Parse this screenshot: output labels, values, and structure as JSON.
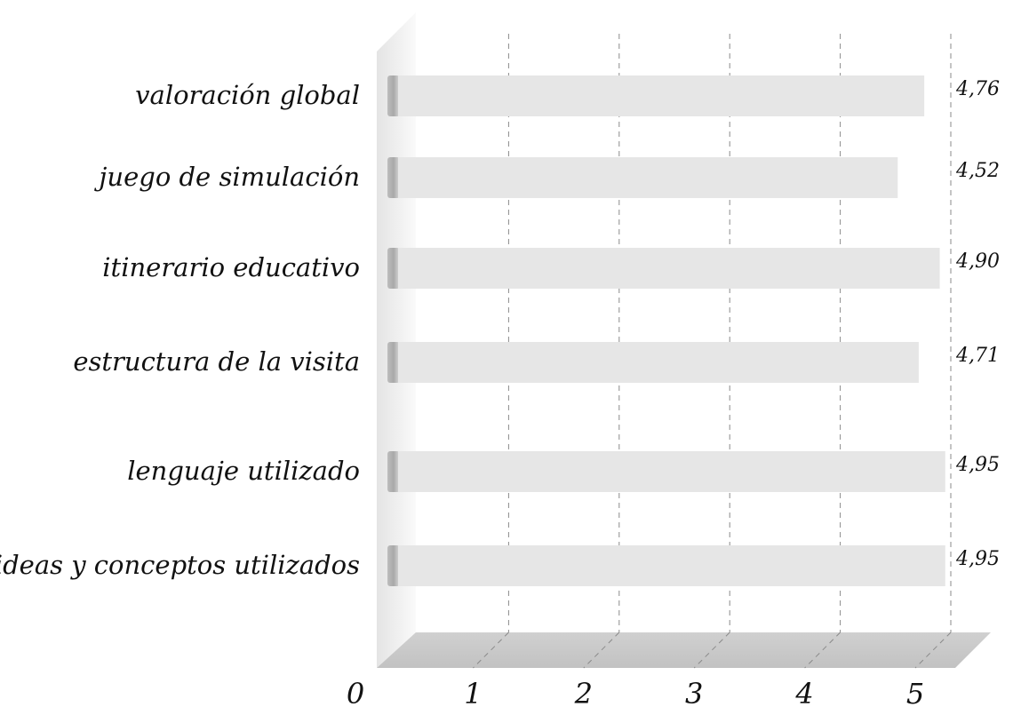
{
  "chart_data": {
    "type": "bar",
    "orientation": "horizontal",
    "categories": [
      "valoración global",
      "juego de simulación",
      "itinerario educativo",
      "estructura de la visita",
      "lenguaje utilizado",
      "ideas y conceptos utilizados"
    ],
    "values": [
      4.76,
      4.52,
      4.9,
      4.71,
      4.95,
      4.95
    ],
    "value_labels": [
      "4,76",
      "4,52",
      "4,90",
      "4,71",
      "4,95",
      "4,95"
    ],
    "x_ticks": [
      "0",
      "1",
      "2",
      "3",
      "4",
      "5"
    ],
    "xlim": [
      0,
      5
    ],
    "grid": "dashed vertical",
    "bar_color": "#e6e6e6"
  }
}
